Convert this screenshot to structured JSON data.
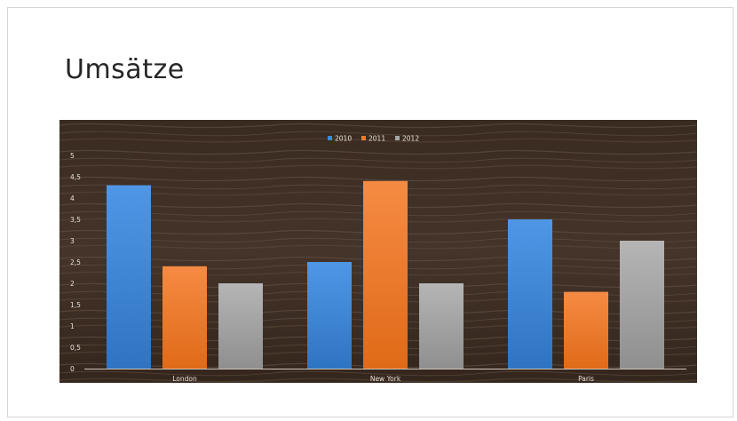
{
  "slide": {
    "title": "Umsätze"
  },
  "chart_data": {
    "type": "bar",
    "title": "",
    "xlabel": "",
    "ylabel": "",
    "categories": [
      "London",
      "New York",
      "Paris"
    ],
    "series": [
      {
        "name": "2010",
        "values": [
          4.3,
          2.5,
          3.5
        ],
        "color": "#3f88d8"
      },
      {
        "name": "2011",
        "values": [
          2.4,
          4.4,
          1.8
        ],
        "color": "#f07a2a"
      },
      {
        "name": "2012",
        "values": [
          2.0,
          2.0,
          3.0
        ],
        "color": "#a6a6a6"
      }
    ],
    "yticks": [
      "0",
      "0,5",
      "1",
      "1,5",
      "2",
      "2,5",
      "3",
      "3,5",
      "4",
      "4,5",
      "5"
    ],
    "ylim": [
      0,
      5
    ],
    "grid": false,
    "legend": "top-center",
    "background": "#3b2c22"
  }
}
